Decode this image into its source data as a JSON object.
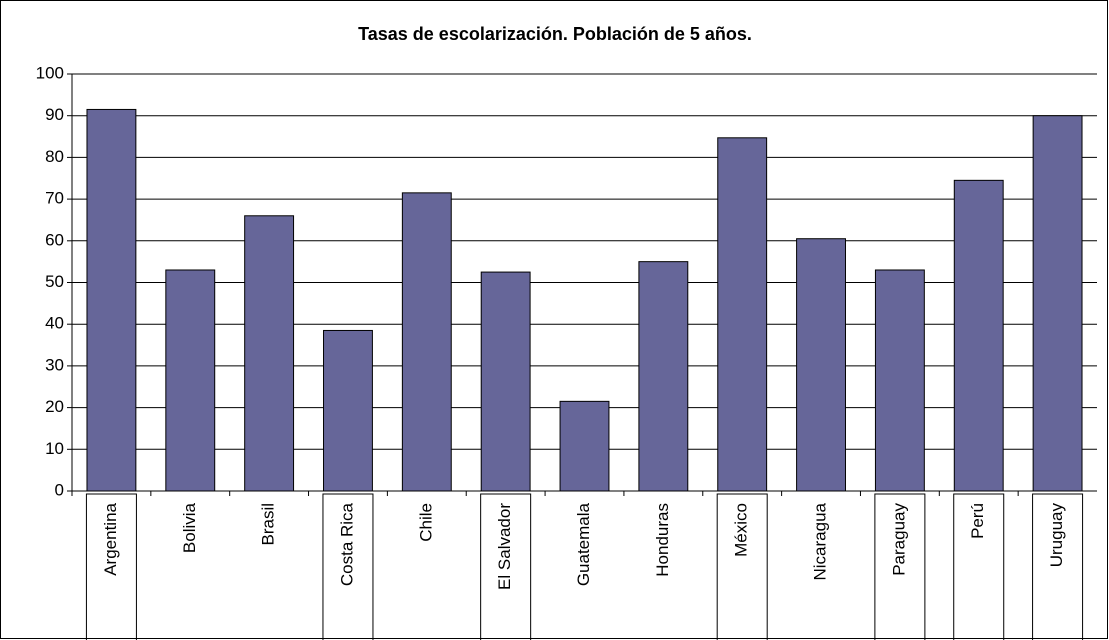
{
  "chart_data": {
    "type": "bar",
    "title": "Tasas de escolarización. Población de 5 años.",
    "categories": [
      "Argentina",
      "Bolivia",
      "Brasil",
      "Costa Rica",
      "Chile",
      "El Salvador",
      "Guatemala",
      "Honduras",
      "México",
      "Nicaragua",
      "Paraguay",
      "Perú",
      "Uruguay"
    ],
    "values": [
      91.5,
      53,
      66,
      38.5,
      71.5,
      52.5,
      21.5,
      55,
      84.7,
      60.5,
      53,
      74.5,
      90
    ],
    "color": "#666699",
    "ylim": [
      0,
      100
    ],
    "yticks": [
      0,
      10,
      20,
      30,
      40,
      50,
      60,
      70,
      80,
      90,
      100
    ],
    "grid": true
  }
}
